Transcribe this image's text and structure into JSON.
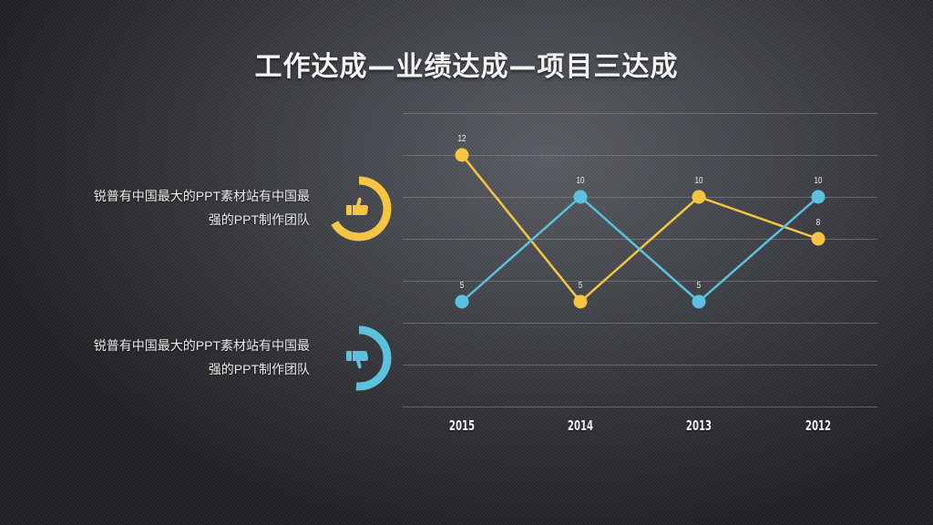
{
  "title": "工作达成—业绩达成—项目三达成",
  "left_panel": {
    "items": [
      {
        "line1": "锐普有中国最大的PPT素材站有中国最",
        "line2": "强的PPT制作团队",
        "icon": "thumbs-up-icon",
        "color": "#f7c544"
      },
      {
        "line1": "锐普有中国最大的PPT素材站有中国最",
        "line2": "强的PPT制作团队",
        "icon": "thumbs-down-icon",
        "color": "#5cc1dc"
      }
    ]
  },
  "colors": {
    "yellow": "#f7c544",
    "blue": "#5cc1dc",
    "gridline": "#8a8d92",
    "text": "#f2f2f2"
  },
  "chart_data": {
    "type": "line",
    "title": "",
    "xlabel": "",
    "ylabel": "",
    "categories": [
      "2015",
      "2014",
      "2013",
      "2012"
    ],
    "series": [
      {
        "name": "yellow",
        "color": "#f7c544",
        "values": [
          12,
          5,
          10,
          8
        ]
      },
      {
        "name": "blue",
        "color": "#5cc1dc",
        "values": [
          5,
          10,
          5,
          10
        ]
      }
    ],
    "ylim": [
      0,
      14
    ],
    "grid": true,
    "gridline_values": [
      0,
      2,
      4,
      6,
      8,
      10,
      12,
      14
    ],
    "data_labels": true,
    "legend": "none"
  }
}
